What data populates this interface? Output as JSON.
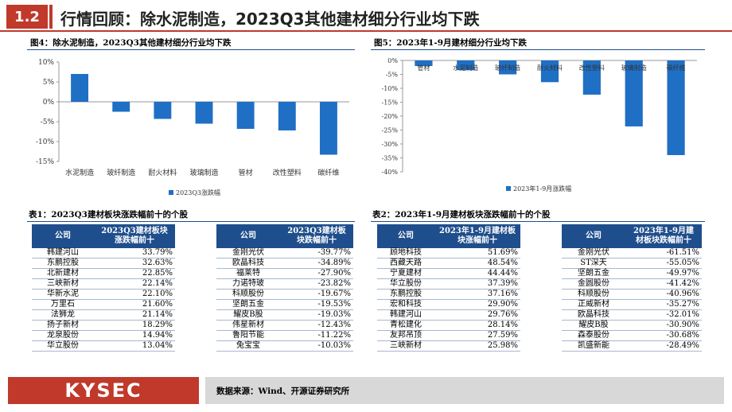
{
  "header": {
    "section_number": "1.2",
    "title": "行情回顾：除水泥制造，2023Q3其他建材细分行业均下跌"
  },
  "fig4": {
    "title": "图4：除水泥制造，2023Q3其他建材细分行业均下跌"
  },
  "fig5": {
    "title": "图5：2023年1-9月建材细分行业均下跌"
  },
  "chart_data": [
    {
      "type": "bar",
      "categories": [
        "水泥制造",
        "玻纤制造",
        "耐火材料",
        "玻璃制造",
        "管材",
        "改性塑料",
        "碳纤维"
      ],
      "series": [
        {
          "name": "2023Q3涨跌幅",
          "values": [
            7.0,
            -2.5,
            -4.3,
            -5.5,
            -6.8,
            -7.2,
            -13.3
          ],
          "color": "#1f6fc5"
        }
      ],
      "yticks": [
        "10%",
        "5%",
        "0%",
        "-5%",
        "-10%",
        "-15%"
      ],
      "ylim": [
        -15,
        10
      ],
      "legend": "bottom"
    },
    {
      "type": "bar",
      "categories": [
        "管材",
        "水泥制造",
        "玻纤制造",
        "耐火材料",
        "改性塑料",
        "玻璃制造",
        "碳纤维"
      ],
      "series": [
        {
          "name": "2023年1-9月涨跌幅",
          "values": [
            -2.0,
            -3.5,
            -5.0,
            -7.8,
            -12.3,
            -23.7,
            -34.0
          ],
          "color": "#1f6fc5"
        }
      ],
      "yticks": [
        "0%",
        "-5%",
        "-10%",
        "-15%",
        "-20%",
        "-25%",
        "-30%",
        "-35%",
        "-40%"
      ],
      "ylim": [
        -40,
        0
      ],
      "legend": "bottom"
    }
  ],
  "table1": {
    "title": "表1：2023Q3建材板块涨跌幅前十的个股",
    "up": {
      "headers": [
        "公司",
        "2023Q3建材板块涨跌幅前十"
      ],
      "rows": [
        [
          "韩建河山",
          "33.79%"
        ],
        [
          "东鹏控股",
          "32.63%"
        ],
        [
          "北新建材",
          "22.85%"
        ],
        [
          "三峡新材",
          "22.14%"
        ],
        [
          "华新水泥",
          "22.10%"
        ],
        [
          "万里石",
          "21.60%"
        ],
        [
          "法狮龙",
          "21.14%"
        ],
        [
          "扬子新材",
          "18.29%"
        ],
        [
          "龙泉股份",
          "14.94%"
        ],
        [
          "华立股份",
          "13.04%"
        ]
      ]
    },
    "down": {
      "headers": [
        "公司",
        "2023Q3建材板块跌幅前十"
      ],
      "rows": [
        [
          "金刚光伏",
          "-39.77%"
        ],
        [
          "欧晶科技",
          "-34.89%"
        ],
        [
          "福莱特",
          "-27.90%"
        ],
        [
          "力诺特玻",
          "-23.82%"
        ],
        [
          "科顺股份",
          "-19.67%"
        ],
        [
          "坚朗五金",
          "-19.53%"
        ],
        [
          "耀皮B股",
          "-19.03%"
        ],
        [
          "伟星新材",
          "-12.43%"
        ],
        [
          "鲁阳节能",
          "-11.22%"
        ],
        [
          "兔宝宝",
          "-10.03%"
        ]
      ]
    }
  },
  "table2": {
    "title": "表2：2023年1-9月建材板块涨跌幅前十的个股",
    "up": {
      "headers": [
        "公司",
        "2023年1-9月建材板块涨幅前十"
      ],
      "rows": [
        [
          "顾地科技",
          "51.69%"
        ],
        [
          "西藏天路",
          "48.54%"
        ],
        [
          "宁夏建材",
          "44.44%"
        ],
        [
          "华立股份",
          "37.39%"
        ],
        [
          "东鹏控股",
          "37.16%"
        ],
        [
          "宏和科技",
          "29.90%"
        ],
        [
          "韩建河山",
          "29.76%"
        ],
        [
          "青松建化",
          "28.14%"
        ],
        [
          "友邦吊顶",
          "27.59%"
        ],
        [
          "三峡新材",
          "25.98%"
        ]
      ]
    },
    "down": {
      "headers": [
        "公司",
        "2023年1-9月建材板块跌幅前十"
      ],
      "rows": [
        [
          "金刚光伏",
          "-61.51%"
        ],
        [
          "ST深天",
          "-55.05%"
        ],
        [
          "坚朗五金",
          "-49.97%"
        ],
        [
          "金圆股份",
          "-41.42%"
        ],
        [
          "科顺股份",
          "-40.96%"
        ],
        [
          "正威新材",
          "-35.27%"
        ],
        [
          "欧晶科技",
          "-32.01%"
        ],
        [
          "耀皮B股",
          "-30.90%"
        ],
        [
          "森泰股份",
          "-30.68%"
        ],
        [
          "凯盛新能",
          "-28.49%"
        ]
      ]
    }
  },
  "footer": {
    "logo": "KYSEC",
    "source": "数据来源：Wind、开源证券研究所"
  }
}
